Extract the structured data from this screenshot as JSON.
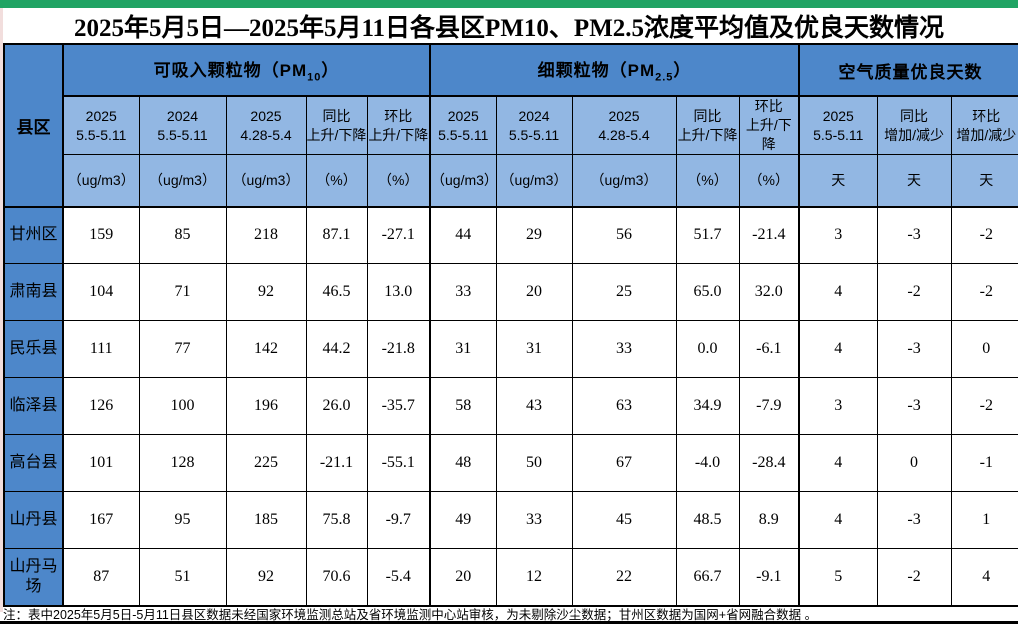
{
  "title": "2025年5月5日—2025年5月11日各县区PM10、PM2.5浓度平均值及优良天数情况",
  "note": "注：表中2025年5月5日-5月11日县区数据未经国家环境监测总站及省环境监测中心站审核，为未剔除沙尘数据；甘州区数据为国网+省网融合数据 。",
  "colors": {
    "top_bar_green": "#21a464",
    "header_blue": "#4d87ca",
    "subheader_blue": "#92b7e3",
    "left_strip_pink": "#f2dedd",
    "bottom_bar_black": "#000000",
    "border_black": "#000000"
  },
  "table": {
    "corner_label": "县区",
    "groups": [
      {
        "prefix": "可吸入颗粒物（PM",
        "sub": "10",
        "suffix": "）"
      },
      {
        "prefix": "细颗粒物（PM",
        "sub": "2.5",
        "suffix": "）"
      },
      {
        "prefix": "空气质量优良天数",
        "sub": "",
        "suffix": ""
      }
    ],
    "columns": [
      {
        "l1": "2025",
        "l2": "5.5-5.11",
        "unit": "（ug/m3）"
      },
      {
        "l1": "2024",
        "l2": "5.5-5.11",
        "unit": "（ug/m3）"
      },
      {
        "l1": "2025",
        "l2": "4.28-5.4",
        "unit": "（ug/m3）"
      },
      {
        "l1": "同比",
        "l2": "上升/下降",
        "unit": "（%）"
      },
      {
        "l1": "环比",
        "l2": "上升/下降",
        "unit": "（%）"
      },
      {
        "l1": "2025",
        "l2": "5.5-5.11",
        "unit": "（ug/m3）"
      },
      {
        "l1": "2024",
        "l2": "5.5-5.11",
        "unit": "（ug/m3）"
      },
      {
        "l1": "2025",
        "l2": "4.28-5.4",
        "unit": "（ug/m3）"
      },
      {
        "l1": "同比",
        "l2": "上升/下降",
        "unit": "（%）"
      },
      {
        "l1": "环比",
        "l2": "上升/下降",
        "unit": "（%）"
      },
      {
        "l1": "2025",
        "l2": "5.5-5.11",
        "unit": "天"
      },
      {
        "l1": "同比",
        "l2": "增加/减少",
        "unit": "天"
      },
      {
        "l1": "环比",
        "l2": "增加/减少",
        "unit": "天"
      }
    ],
    "rows": [
      {
        "name": "甘州区",
        "values": [
          "159",
          "85",
          "218",
          "87.1",
          "-27.1",
          "44",
          "29",
          "56",
          "51.7",
          "-21.4",
          "3",
          "-3",
          "-2"
        ]
      },
      {
        "name": "肃南县",
        "values": [
          "104",
          "71",
          "92",
          "46.5",
          "13.0",
          "33",
          "20",
          "25",
          "65.0",
          "32.0",
          "4",
          "-2",
          "-2"
        ]
      },
      {
        "name": "民乐县",
        "values": [
          "111",
          "77",
          "142",
          "44.2",
          "-21.8",
          "31",
          "31",
          "33",
          "0.0",
          "-6.1",
          "4",
          "-3",
          "0"
        ]
      },
      {
        "name": "临泽县",
        "values": [
          "126",
          "100",
          "196",
          "26.0",
          "-35.7",
          "58",
          "43",
          "63",
          "34.9",
          "-7.9",
          "3",
          "-3",
          "-2"
        ]
      },
      {
        "name": "高台县",
        "values": [
          "101",
          "128",
          "225",
          "-21.1",
          "-55.1",
          "48",
          "50",
          "67",
          "-4.0",
          "-28.4",
          "4",
          "0",
          "-1"
        ]
      },
      {
        "name": "山丹县",
        "values": [
          "167",
          "95",
          "185",
          "75.8",
          "-9.7",
          "49",
          "33",
          "45",
          "48.5",
          "8.9",
          "4",
          "-3",
          "1"
        ]
      },
      {
        "name": "山丹马场",
        "values": [
          "87",
          "51",
          "92",
          "70.6",
          "-5.4",
          "20",
          "12",
          "22",
          "66.7",
          "-9.1",
          "5",
          "-2",
          "4"
        ]
      }
    ]
  }
}
